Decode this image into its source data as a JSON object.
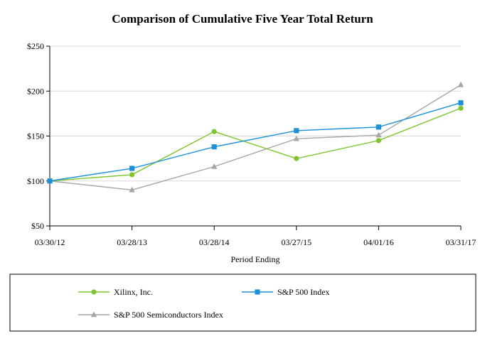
{
  "chart_data": {
    "type": "line",
    "title": "Comparison of Cumulative Five Year Total Return",
    "xlabel": "Period Ending",
    "ylabel": "",
    "categories": [
      "03/30/12",
      "03/28/13",
      "03/28/14",
      "03/27/15",
      "04/01/16",
      "03/31/17"
    ],
    "ylim": [
      50,
      250
    ],
    "yticks": [
      50,
      100,
      150,
      200,
      250
    ],
    "ytick_labels": [
      "$50",
      "$100",
      "$150",
      "$200",
      "$250"
    ],
    "grid": "horizontal",
    "legend_position": "bottom",
    "series": [
      {
        "name": "Xilinx, Inc.",
        "color": "#7dc52e",
        "marker": "circle",
        "values": [
          100,
          107,
          155,
          125,
          145,
          181
        ]
      },
      {
        "name": "S&P 500 Index",
        "color": "#1e90d8",
        "marker": "square",
        "values": [
          100,
          114,
          138,
          156,
          160,
          187
        ]
      },
      {
        "name": "S&P 500 Semiconductors Index",
        "color": "#a6a6a6",
        "marker": "triangle",
        "values": [
          100,
          90,
          116,
          147,
          151,
          207
        ]
      }
    ]
  }
}
